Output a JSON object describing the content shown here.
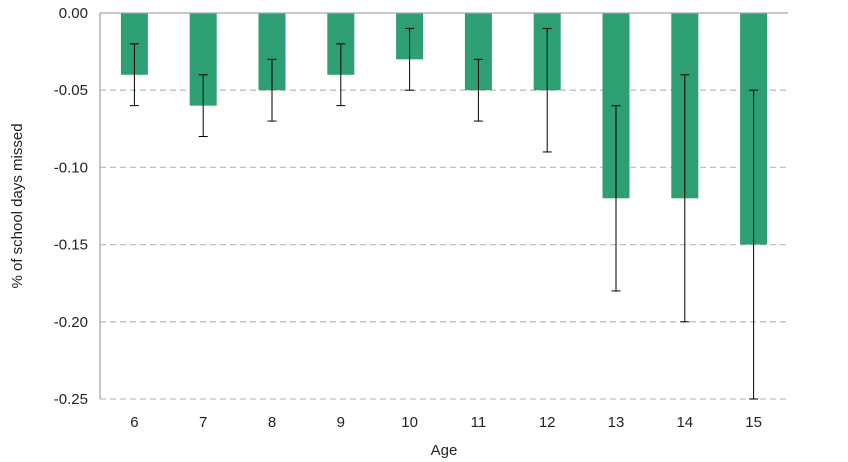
{
  "chart_data": {
    "type": "bar",
    "title": "",
    "xlabel": "Age",
    "ylabel": "% of school days missed",
    "categories": [
      "6",
      "7",
      "8",
      "9",
      "10",
      "11",
      "12",
      "13",
      "14",
      "15"
    ],
    "series": [
      {
        "values": [
          -0.04,
          -0.06,
          -0.05,
          -0.04,
          -0.03,
          -0.05,
          -0.05,
          -0.12,
          -0.12,
          -0.15
        ],
        "error_low": [
          -0.06,
          -0.08,
          -0.07,
          -0.06,
          -0.05,
          -0.07,
          -0.09,
          -0.18,
          -0.2,
          -0.25
        ],
        "error_high": [
          -0.02,
          -0.04,
          -0.03,
          -0.02,
          -0.01,
          -0.03,
          -0.01,
          -0.06,
          -0.04,
          -0.05
        ],
        "color": "#2e9e73"
      }
    ],
    "ylim": [
      -0.25,
      0.0
    ],
    "yticks": [
      0.0,
      -0.05,
      -0.1,
      -0.15,
      -0.2,
      -0.25
    ],
    "ytick_labels": [
      "0.00",
      "-0.05",
      "-0.10",
      "-0.15",
      "-0.20",
      "-0.25"
    ],
    "grid": true,
    "grid_style": "dashed",
    "grid_color": "#bfbfbf",
    "axis_color": "#a6a6a6",
    "error_bar_color": "#000000"
  }
}
